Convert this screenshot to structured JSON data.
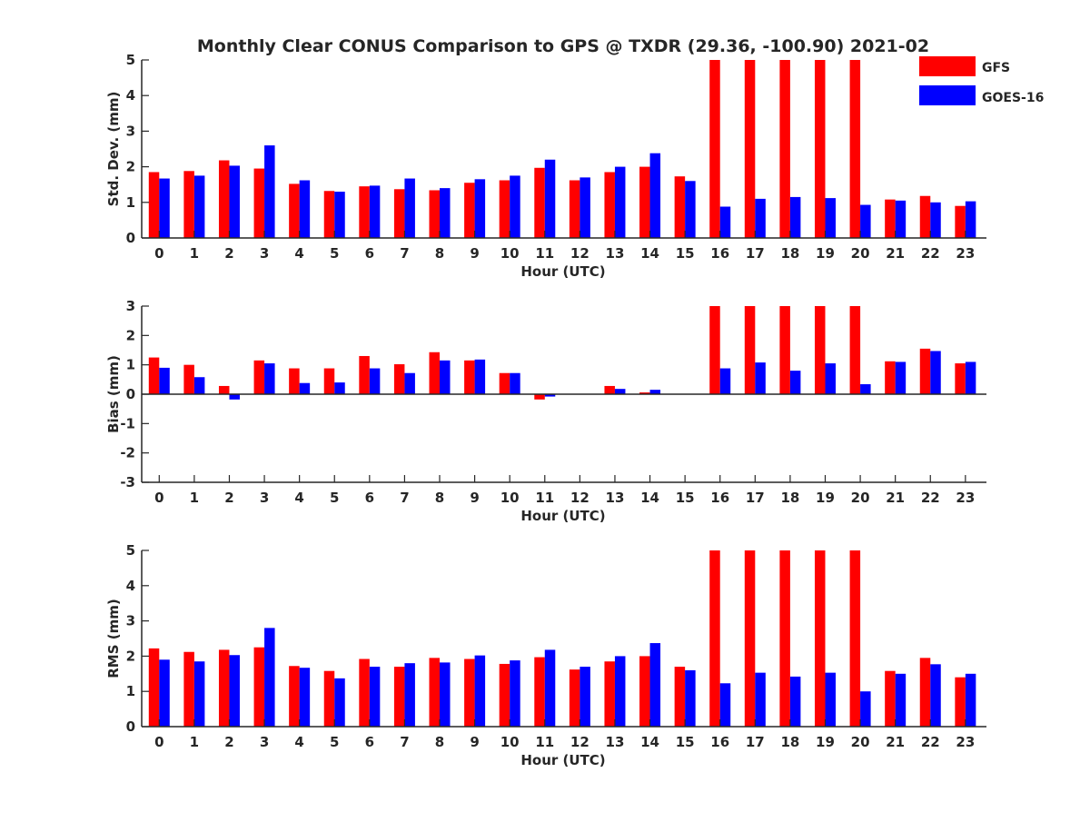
{
  "title": "Monthly Clear CONUS Comparison to GPS @ TXDR (29.36, -100.90) 2021-02",
  "legend": [
    {
      "name": "GFS",
      "color": "#ff0000"
    },
    {
      "name": "GOES-16",
      "color": "#0000ff"
    }
  ],
  "chart_data": [
    {
      "type": "bar",
      "ylabel": "Std. Dev. (mm)",
      "xlabel": "Hour (UTC)",
      "ylim": [
        0,
        5
      ],
      "yticks": [
        0,
        1,
        2,
        3,
        4,
        5
      ],
      "categories": [
        "0",
        "1",
        "2",
        "3",
        "4",
        "5",
        "6",
        "7",
        "8",
        "9",
        "10",
        "11",
        "12",
        "13",
        "14",
        "15",
        "16",
        "17",
        "18",
        "19",
        "20",
        "21",
        "22",
        "23"
      ],
      "series": [
        {
          "name": "GFS",
          "values": [
            1.85,
            1.88,
            2.18,
            1.95,
            1.52,
            1.32,
            1.45,
            1.37,
            1.34,
            1.55,
            1.62,
            1.97,
            1.62,
            1.85,
            2.0,
            1.73,
            5,
            5,
            5,
            5,
            5,
            1.08,
            1.18,
            0.9
          ]
        },
        {
          "name": "GOES-16",
          "values": [
            1.67,
            1.75,
            2.03,
            2.6,
            1.62,
            1.3,
            1.47,
            1.67,
            1.4,
            1.65,
            1.75,
            2.2,
            1.7,
            2.0,
            2.38,
            1.6,
            0.88,
            1.1,
            1.15,
            1.12,
            0.93,
            1.05,
            1.0,
            1.03
          ]
        }
      ]
    },
    {
      "type": "bar",
      "ylabel": "Bias (mm)",
      "xlabel": "Hour (UTC)",
      "ylim": [
        -3,
        3
      ],
      "yticks": [
        -3,
        -2,
        -1,
        0,
        1,
        2,
        3
      ],
      "categories": [
        "0",
        "1",
        "2",
        "3",
        "4",
        "5",
        "6",
        "7",
        "8",
        "9",
        "10",
        "11",
        "12",
        "13",
        "14",
        "15",
        "16",
        "17",
        "18",
        "19",
        "20",
        "21",
        "22",
        "23"
      ],
      "series": [
        {
          "name": "GFS",
          "values": [
            1.25,
            1.0,
            0.28,
            1.15,
            0.88,
            0.88,
            1.3,
            1.02,
            1.43,
            1.15,
            0.72,
            -0.18,
            0,
            0.28,
            0.06,
            0,
            3,
            3,
            3,
            3,
            3,
            1.12,
            1.55,
            1.05
          ]
        },
        {
          "name": "GOES-16",
          "values": [
            0.9,
            0.58,
            -0.18,
            1.05,
            0.38,
            0.4,
            0.88,
            0.72,
            1.15,
            1.18,
            0.72,
            -0.08,
            0,
            0.18,
            0.15,
            0,
            0.88,
            1.08,
            0.8,
            1.05,
            0.34,
            1.1,
            1.47,
            1.1
          ]
        }
      ]
    },
    {
      "type": "bar",
      "ylabel": "RMS (mm)",
      "xlabel": "Hour (UTC)",
      "ylim": [
        0,
        5
      ],
      "yticks": [
        0,
        1,
        2,
        3,
        4,
        5
      ],
      "categories": [
        "0",
        "1",
        "2",
        "3",
        "4",
        "5",
        "6",
        "7",
        "8",
        "9",
        "10",
        "11",
        "12",
        "13",
        "14",
        "15",
        "16",
        "17",
        "18",
        "19",
        "20",
        "21",
        "22",
        "23"
      ],
      "series": [
        {
          "name": "GFS",
          "values": [
            2.22,
            2.12,
            2.18,
            2.25,
            1.72,
            1.58,
            1.92,
            1.7,
            1.95,
            1.92,
            1.78,
            1.97,
            1.62,
            1.85,
            2.0,
            1.7,
            5,
            5,
            5,
            5,
            5,
            1.58,
            1.95,
            1.4
          ]
        },
        {
          "name": "GOES-16",
          "values": [
            1.9,
            1.85,
            2.03,
            2.8,
            1.67,
            1.37,
            1.7,
            1.8,
            1.82,
            2.02,
            1.88,
            2.18,
            1.7,
            2.0,
            2.37,
            1.6,
            1.23,
            1.53,
            1.42,
            1.53,
            1.0,
            1.5,
            1.77,
            1.5
          ]
        }
      ]
    }
  ]
}
